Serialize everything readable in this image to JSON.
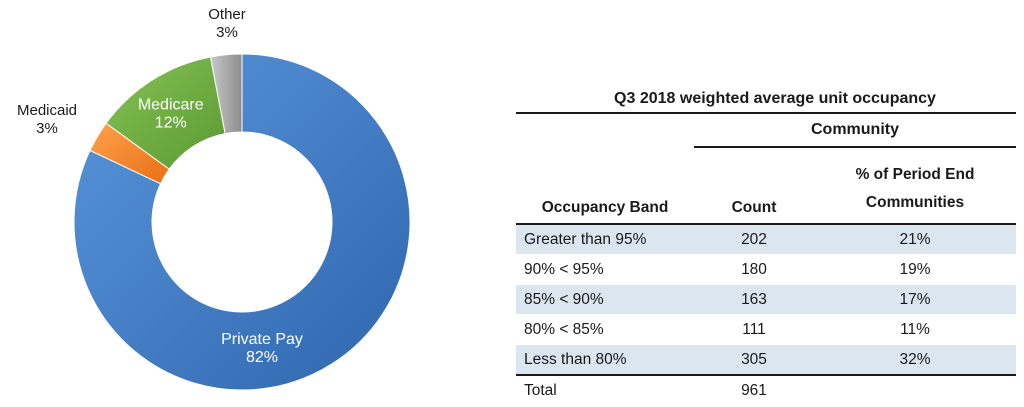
{
  "chart_data": [
    {
      "type": "pie",
      "subtype": "donut",
      "slices": [
        {
          "name": "Private Pay",
          "label": "Private Pay",
          "value_label": "82%",
          "value": 82,
          "color": "#3d7cc9",
          "label_placement": "inside"
        },
        {
          "name": "Medicaid",
          "label": "Medicaid",
          "value_label": "3%",
          "value": 3,
          "color": "#f0812a",
          "label_placement": "outside"
        },
        {
          "name": "Medicare",
          "label": "Medicare",
          "value_label": "12%",
          "value": 12,
          "color": "#6dad3e",
          "label_placement": "inside"
        },
        {
          "name": "Other",
          "label": "Other",
          "value_label": "3%",
          "value": 3,
          "color": "#a6a6a6",
          "label_placement": "outside"
        }
      ]
    },
    {
      "type": "table",
      "title": "Q3 2018 weighted average unit occupancy",
      "group_header": "Community",
      "columns": [
        "Occupancy Band",
        "Count",
        "% of Period End Communities"
      ],
      "rows": [
        {
          "band": "Greater than 95%",
          "count": "202",
          "pct": "21%",
          "shaded": true
        },
        {
          "band": "90% < 95%",
          "count": "180",
          "pct": "19%",
          "shaded": false
        },
        {
          "band": "85% < 90%",
          "count": "163",
          "pct": "17%",
          "shaded": true
        },
        {
          "band": "80% < 85%",
          "count": "111",
          "pct": "11%",
          "shaded": false
        },
        {
          "band": "Less than 80%",
          "count": "305",
          "pct": "32%",
          "shaded": true
        }
      ],
      "total": {
        "label": "Total",
        "count": "961",
        "pct": ""
      }
    }
  ],
  "table_header": {
    "band": "Occupancy Band",
    "count": "Count",
    "pct_line1": "% of Period End",
    "pct_line2": "Communities"
  }
}
